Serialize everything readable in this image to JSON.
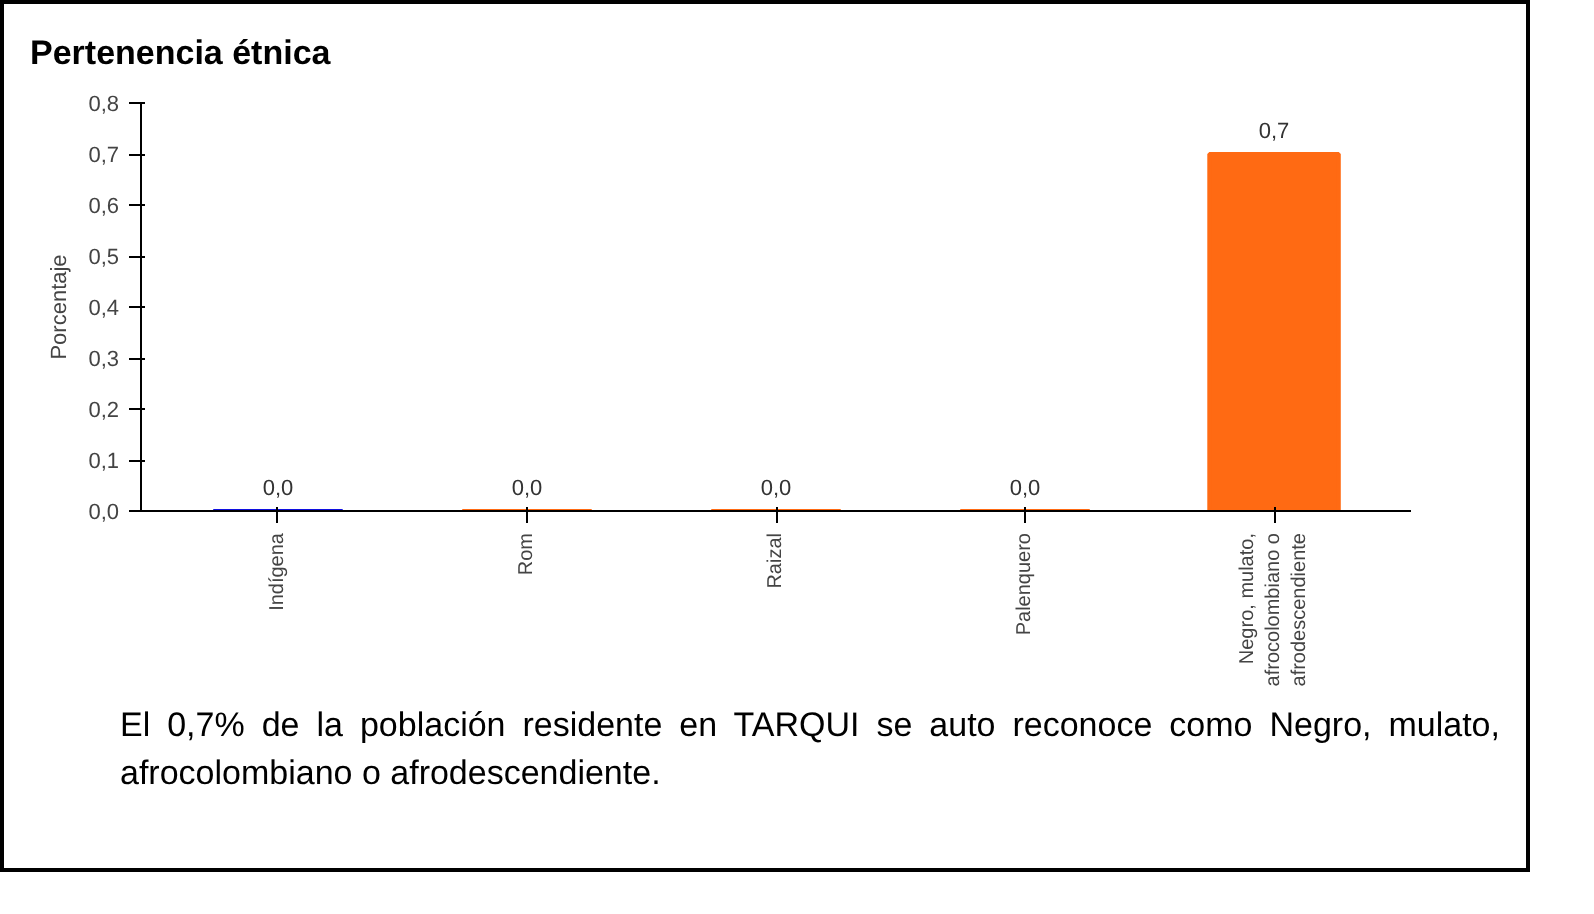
{
  "chart_data": {
    "type": "bar",
    "title": "Pertenencia étnica",
    "ylabel": "Porcentaje",
    "categories": [
      "Indígena",
      "Rom",
      "Raizal",
      "Palenquero",
      "Negro, mulato, afrocolombiano o afrodescendiente"
    ],
    "values": [
      0.0,
      0.0,
      0.0,
      0.0,
      0.7
    ],
    "colors": [
      "#1010e0",
      "#ff6a13",
      "#ff6a13",
      "#ff6a13",
      "#ff6a13"
    ],
    "value_labels": [
      "0,0",
      "0,0",
      "0,0",
      "0,0",
      "0,7"
    ],
    "ylim": [
      0,
      0.8
    ],
    "yticks": [
      {
        "value": 0,
        "label": "0,0"
      },
      {
        "value": 0.1,
        "label": "0,1"
      },
      {
        "value": 0.2,
        "label": "0,2"
      },
      {
        "value": 0.3,
        "label": "0,3"
      },
      {
        "value": 0.4,
        "label": "0,4"
      },
      {
        "value": 0.5,
        "label": "0,5"
      },
      {
        "value": 0.6,
        "label": "0,6"
      },
      {
        "value": 0.7,
        "label": "0,7"
      },
      {
        "value": 0.8,
        "label": "0,8"
      }
    ],
    "grid": false,
    "annotations": [
      "El 0,7% de la población residente en TARQUI se auto reconoce como Negro, mulato, afrocolombiano o afrodescendiente."
    ]
  }
}
